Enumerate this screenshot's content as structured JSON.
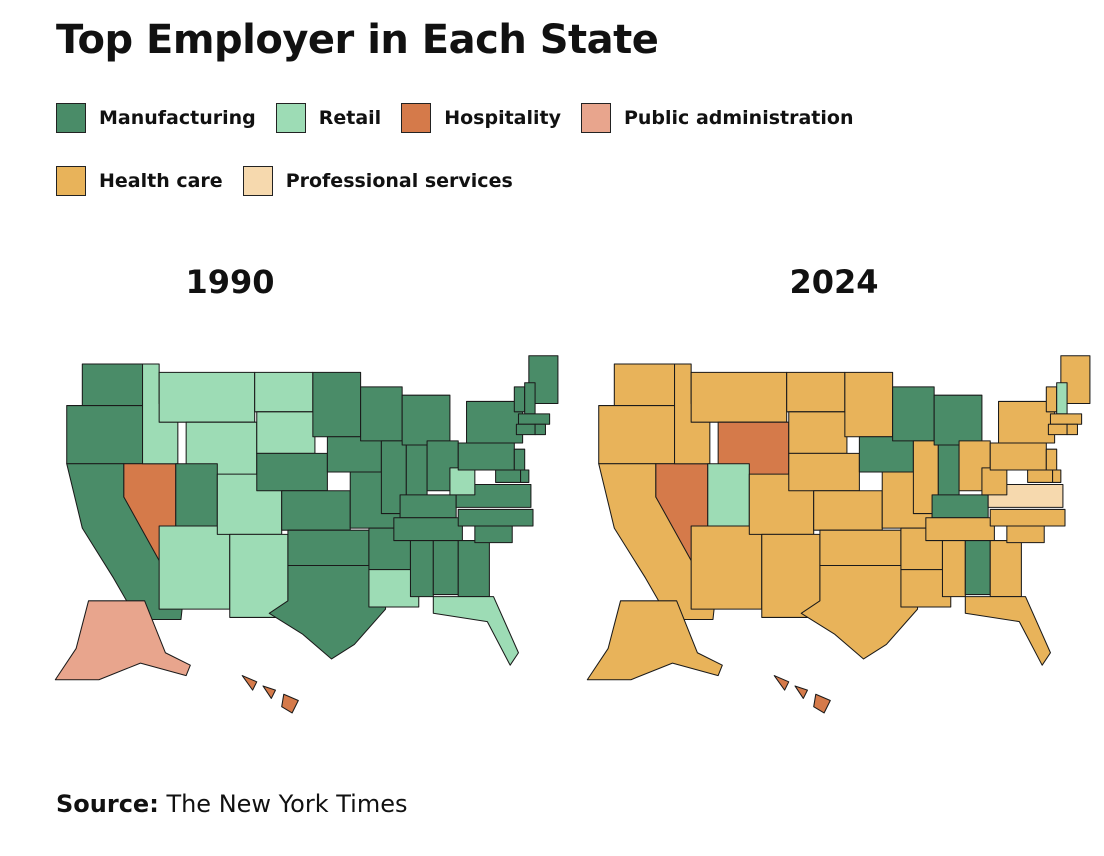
{
  "title": "Top Employer in Each State",
  "legend": [
    {
      "key": "manufacturing",
      "label": "Manufacturing",
      "color": "#4a8c68"
    },
    {
      "key": "retail",
      "label": "Retail",
      "color": "#9ddcb5"
    },
    {
      "key": "hospitality",
      "label": "Hospitality",
      "color": "#d57a4a"
    },
    {
      "key": "public_administration",
      "label": "Public administration",
      "color": "#e8a58d"
    },
    {
      "key": "health_care",
      "label": "Health care",
      "color": "#e8b35a"
    },
    {
      "key": "professional_services",
      "label": "Professional services",
      "color": "#f6d9ae"
    }
  ],
  "maps": [
    {
      "year": "1990",
      "default": "manufacturing",
      "states": {
        "MT": "retail",
        "ID": "retail",
        "WY": "retail",
        "ND": "retail",
        "SD": "retail",
        "CO": "retail",
        "AZ": "retail",
        "NM": "retail",
        "LA": "retail",
        "FL": "retail",
        "WV": "retail",
        "NV": "hospitality",
        "HI": "hospitality",
        "AK": "public_administration"
      }
    },
    {
      "year": "2024",
      "default": "health_care",
      "states": {
        "WI": "manufacturing",
        "MI": "manufacturing",
        "IA": "manufacturing",
        "IN": "manufacturing",
        "KY": "manufacturing",
        "AL": "manufacturing",
        "UT": "retail",
        "NH": "retail",
        "NV": "hospitality",
        "WY": "hospitality",
        "HI": "hospitality",
        "VA": "professional_services"
      }
    }
  ],
  "source": {
    "label": "Source:",
    "text": "The New York Times"
  }
}
